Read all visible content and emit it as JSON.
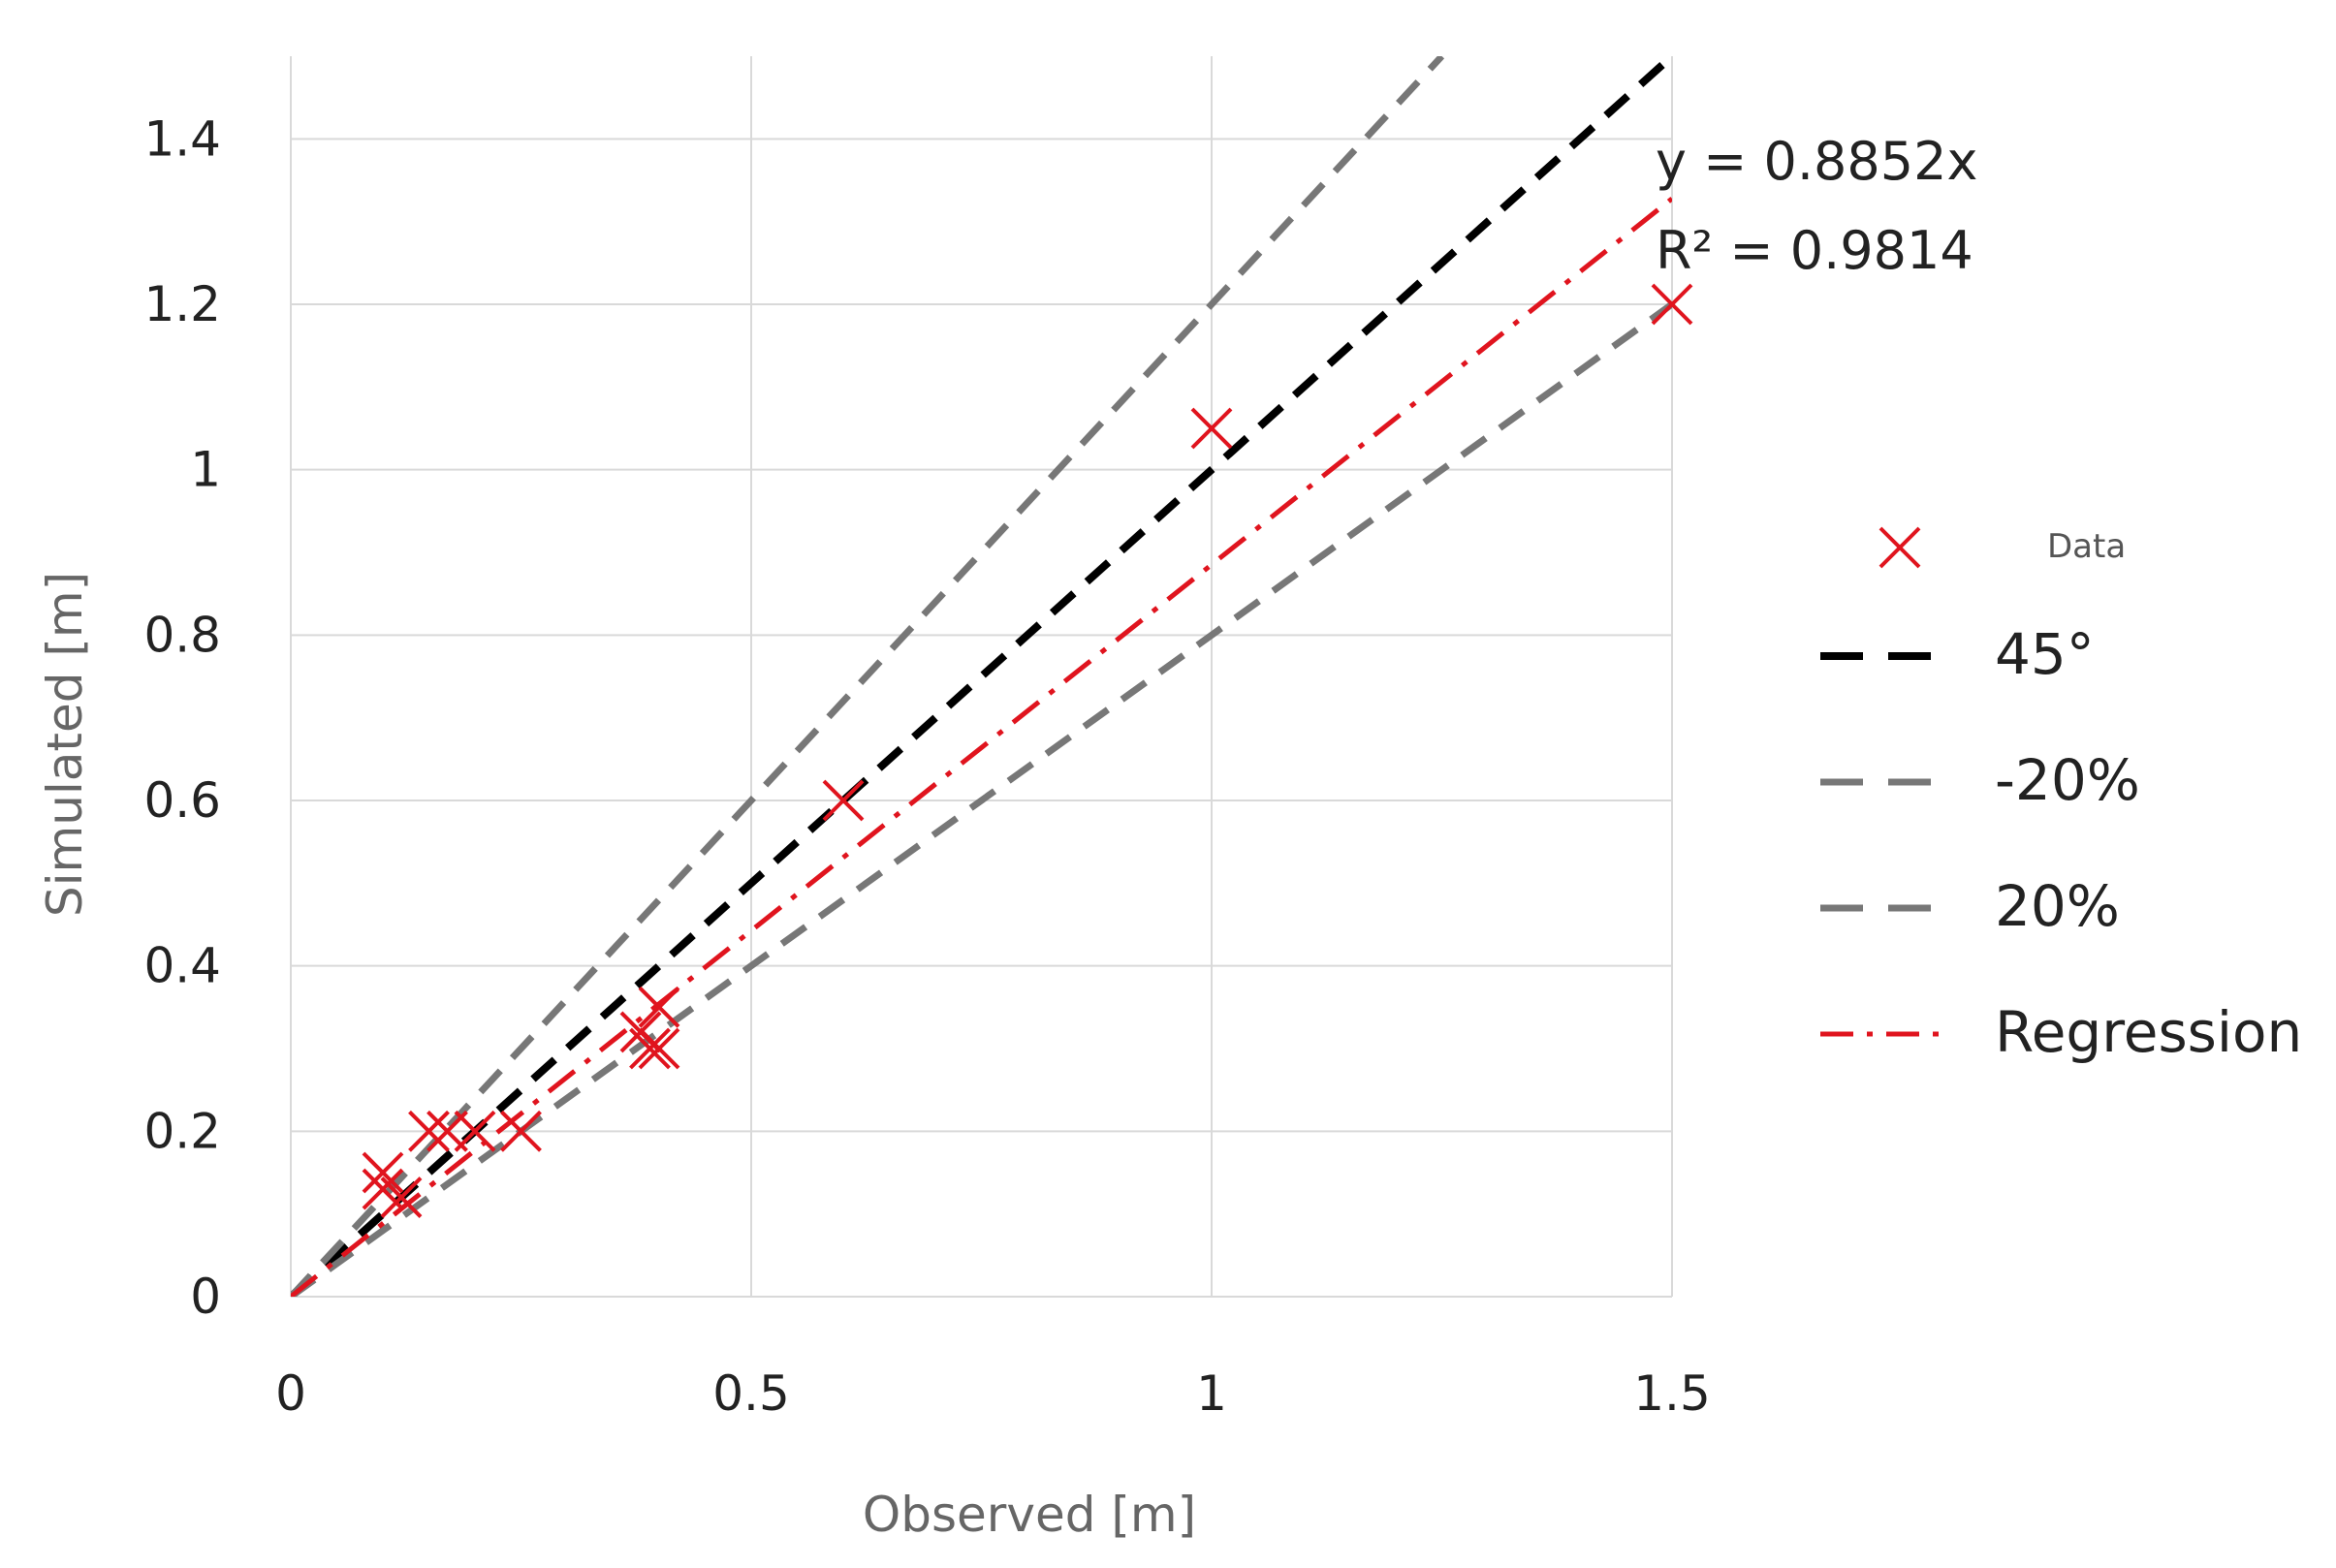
{
  "chart_data": {
    "type": "scatter",
    "xlabel": "Observed [m]",
    "ylabel": "Simulated [m]",
    "xlim": [
      0,
      1.5
    ],
    "ylim": [
      0,
      1.5
    ],
    "x_ticks": [
      0,
      0.5,
      1,
      1.5
    ],
    "x_tick_labels": [
      "0",
      "0.5",
      "1",
      "1.5"
    ],
    "y_ticks": [
      0,
      0.2,
      0.4,
      0.6,
      0.8,
      1,
      1.2,
      1.4
    ],
    "y_tick_labels": [
      "0",
      "0.2",
      "0.4",
      "0.6",
      "0.8",
      "1",
      "1.2",
      "1.4"
    ],
    "grid": true,
    "legend_position": "right",
    "series": [
      {
        "name": "Data",
        "kind": "markers",
        "marker": "x",
        "color": "#e0141e",
        "points": [
          {
            "x": 0.1,
            "y": 0.15
          },
          {
            "x": 0.1,
            "y": 0.13
          },
          {
            "x": 0.12,
            "y": 0.12
          },
          {
            "x": 0.15,
            "y": 0.2
          },
          {
            "x": 0.17,
            "y": 0.2
          },
          {
            "x": 0.2,
            "y": 0.2
          },
          {
            "x": 0.25,
            "y": 0.2
          },
          {
            "x": 0.38,
            "y": 0.32
          },
          {
            "x": 0.39,
            "y": 0.3
          },
          {
            "x": 0.4,
            "y": 0.35
          },
          {
            "x": 0.4,
            "y": 0.3
          },
          {
            "x": 0.6,
            "y": 0.6
          },
          {
            "x": 1.0,
            "y": 1.05
          },
          {
            "x": 1.5,
            "y": 1.2
          }
        ]
      },
      {
        "name": "45°",
        "kind": "line",
        "style": "dashed",
        "color": "#000000",
        "x": [
          0,
          1.5
        ],
        "y": [
          0,
          1.5
        ]
      },
      {
        "name": "-20%",
        "kind": "line",
        "style": "dashed",
        "color": "#777777",
        "x": [
          0,
          1.5
        ],
        "y": [
          0,
          1.2
        ]
      },
      {
        "name": "20%",
        "kind": "line",
        "style": "dashed",
        "color": "#777777",
        "x": [
          0,
          1.25
        ],
        "y": [
          0,
          1.5
        ]
      },
      {
        "name": "Regression",
        "kind": "line",
        "style": "dash-dot",
        "color": "#e0141e",
        "x": [
          0,
          1.5
        ],
        "y": [
          0,
          1.3278
        ]
      }
    ],
    "annotations": [
      "y = 0.8852x",
      "R² = 0.9814"
    ]
  }
}
